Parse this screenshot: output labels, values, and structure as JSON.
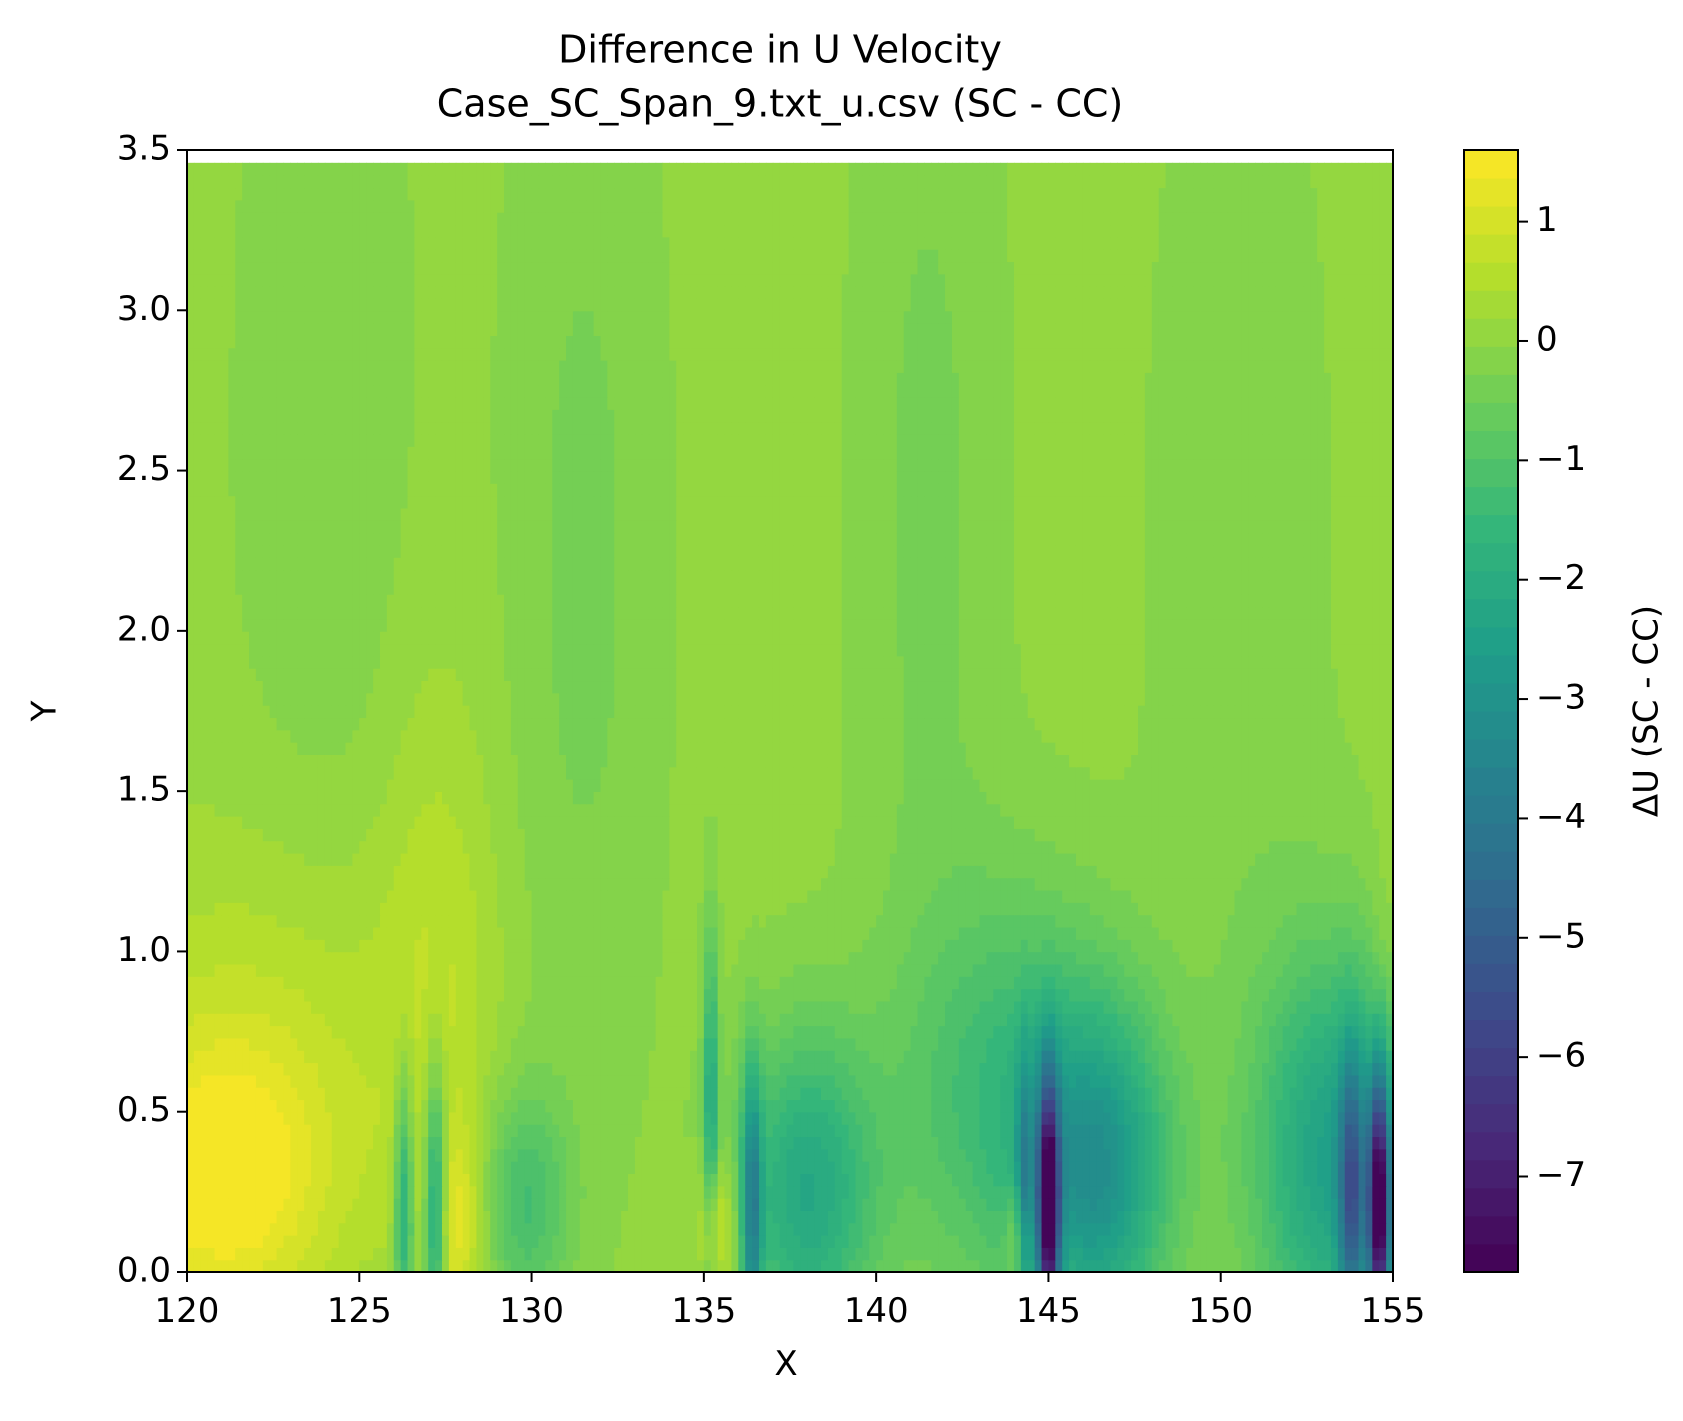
{
  "chart_data": {
    "type": "heatmap",
    "title": "Difference in U Velocity",
    "subtitle": "Case_SC_Span_9.txt_u.csv (SC - CC)",
    "xlabel": "X",
    "ylabel": "Y",
    "xlim": [
      120,
      155
    ],
    "ylim": [
      0,
      3.5
    ],
    "x_ticks": [
      "120",
      "125",
      "130",
      "135",
      "140",
      "145",
      "150",
      "155"
    ],
    "y_ticks": [
      "0.0",
      "0.5",
      "1.0",
      "1.5",
      "2.0",
      "2.5",
      "3.0",
      "3.5"
    ],
    "colorbar": {
      "label": "ΔU (SC - CC)",
      "range": [
        -7.8,
        1.6
      ],
      "ticks": [
        "1",
        "0",
        "−1",
        "−2",
        "−3",
        "−4",
        "−5",
        "−6",
        "−7"
      ],
      "colormap": "viridis"
    },
    "data_extent": {
      "x": [
        120,
        155
      ],
      "y": [
        0,
        3.46
      ]
    },
    "background_value": 0.05,
    "features": [
      {
        "x": 121.0,
        "y": 0.28,
        "value": 1.4,
        "sx": 2.2,
        "sy": 0.32
      },
      {
        "x": 122.5,
        "y": 0.7,
        "value": 0.6,
        "sx": 3.5,
        "sy": 0.5
      },
      {
        "x": 127.3,
        "y": 0.9,
        "value": 0.5,
        "sx": 1.2,
        "sy": 0.7
      },
      {
        "x": 127.8,
        "y": 0.15,
        "value": 1.0,
        "sx": 0.6,
        "sy": 0.2
      },
      {
        "x": 126.3,
        "y": 0.2,
        "value": -2.2,
        "sx": 0.2,
        "sy": 0.3
      },
      {
        "x": 127.2,
        "y": 0.2,
        "value": -2.8,
        "sx": 0.22,
        "sy": 0.3
      },
      {
        "x": 129.8,
        "y": 0.22,
        "value": -1.3,
        "sx": 0.9,
        "sy": 0.25
      },
      {
        "x": 131.5,
        "y": 2.2,
        "value": -0.4,
        "sx": 1.6,
        "sy": 1.3
      },
      {
        "x": 124.0,
        "y": 2.6,
        "value": -0.3,
        "sx": 1.8,
        "sy": 1.2
      },
      {
        "x": 135.2,
        "y": 0.55,
        "value": -2.0,
        "sx": 0.15,
        "sy": 0.35
      },
      {
        "x": 135.4,
        "y": 0.15,
        "value": 1.2,
        "sx": 0.4,
        "sy": 0.15
      },
      {
        "x": 136.4,
        "y": 0.2,
        "value": -3.0,
        "sx": 0.2,
        "sy": 0.3
      },
      {
        "x": 138.0,
        "y": 0.25,
        "value": -2.2,
        "sx": 1.4,
        "sy": 0.35
      },
      {
        "x": 141.5,
        "y": 2.4,
        "value": -0.4,
        "sx": 1.5,
        "sy": 1.3
      },
      {
        "x": 144.3,
        "y": 0.25,
        "value": -2.0,
        "sx": 0.15,
        "sy": 0.3
      },
      {
        "x": 144.1,
        "y": 0.12,
        "value": 1.0,
        "sx": 0.25,
        "sy": 0.1
      },
      {
        "x": 144.0,
        "y": 0.55,
        "value": -1.5,
        "sx": 2.2,
        "sy": 0.45
      },
      {
        "x": 145.0,
        "y": 0.2,
        "value": -7.0,
        "sx": 0.22,
        "sy": 0.28
      },
      {
        "x": 146.5,
        "y": 0.3,
        "value": -2.6,
        "sx": 1.4,
        "sy": 0.35
      },
      {
        "x": 150.5,
        "y": 2.2,
        "value": -0.3,
        "sx": 1.8,
        "sy": 1.3
      },
      {
        "x": 153.3,
        "y": 0.35,
        "value": -2.5,
        "sx": 1.6,
        "sy": 0.45
      },
      {
        "x": 153.8,
        "y": 0.25,
        "value": -3.5,
        "sx": 0.25,
        "sy": 0.3
      },
      {
        "x": 154.6,
        "y": 0.2,
        "value": -7.2,
        "sx": 0.22,
        "sy": 0.28
      },
      {
        "x": 154.8,
        "y": 1.0,
        "value": 0.3,
        "sx": 0.3,
        "sy": 0.25
      }
    ]
  }
}
